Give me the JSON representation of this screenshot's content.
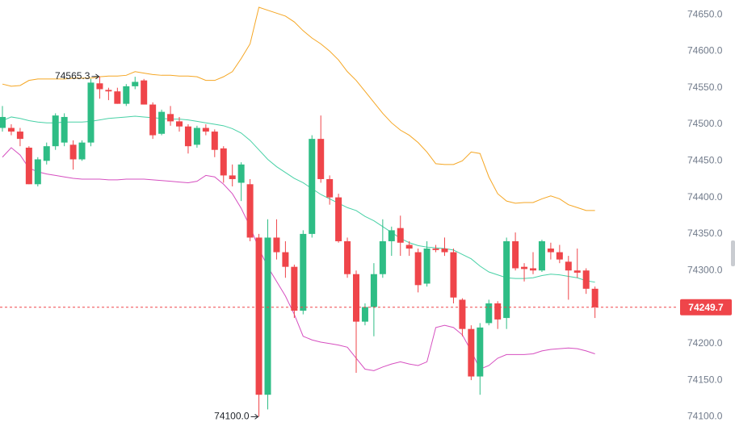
{
  "chart_data": {
    "type": "candlestick",
    "up_color": "#2ebd85",
    "down_color": "#ef454a",
    "ylim": [
      74064,
      74670
    ],
    "yticks": [
      {
        "value": 74100,
        "label": "74100.0"
      },
      {
        "value": 74150,
        "label": "74150.0"
      },
      {
        "value": 74200,
        "label": "74200.0"
      },
      {
        "value": 74250,
        "label": "74250.0"
      },
      {
        "value": 74300,
        "label": "74300.0"
      },
      {
        "value": 74350,
        "label": "74350.0"
      },
      {
        "value": 74400,
        "label": "74400.0"
      },
      {
        "value": 74450,
        "label": "74450.0"
      },
      {
        "value": 74500,
        "label": "74500.0"
      },
      {
        "value": 74550,
        "label": "74550.0"
      },
      {
        "value": 74600,
        "label": "74600.0"
      },
      {
        "value": 74650,
        "label": "74650.0"
      }
    ],
    "open": [
      74495,
      74495,
      74490,
      74468,
      74418,
      74450,
      74470,
      74475,
      74472,
      74452,
      74475,
      74556,
      74547,
      74545,
      74528,
      74552,
      74560,
      74527,
      74487,
      74514,
      74504,
      74497,
      74472,
      74495,
      74490,
      74467,
      74430,
      74420,
      74418,
      74345,
      74130,
      74345,
      74325,
      74305,
      74245,
      74350,
      74480,
      74425,
      74400,
      74340,
      74295,
      74230,
      74250,
      74295,
      74340,
      74358,
      74335,
      74325,
      74282,
      74330,
      74330,
      74325,
      74260,
      74220,
      74155,
      74228,
      74255,
      74235,
      74340,
      74305,
      74303,
      74300,
      74330,
      74325,
      74312,
      74300,
      74300,
      74275
    ],
    "high": [
      74525,
      74500,
      74495,
      74470,
      74455,
      74475,
      74515,
      74515,
      74478,
      74478,
      74562,
      74565.3,
      74550,
      74550,
      74555,
      74565,
      74562,
      74530,
      74520,
      74525,
      74510,
      74500,
      74498,
      74500,
      74493,
      74470,
      74445,
      74448,
      74425,
      74350,
      74370,
      74370,
      74340,
      74308,
      74355,
      74485,
      74512,
      74430,
      74405,
      74345,
      74300,
      74255,
      74310,
      74370,
      74360,
      74375,
      74340,
      74330,
      74340,
      74335,
      74345,
      74330,
      74262,
      74225,
      74228,
      74260,
      74258,
      74345,
      74352,
      74310,
      74325,
      74342,
      74338,
      74335,
      74320,
      74330,
      74303,
      74278
    ],
    "low": [
      74490,
      74485,
      74470,
      74418,
      74415,
      74445,
      74465,
      74470,
      74438,
      74450,
      74470,
      74535,
      74533,
      74528,
      74525,
      74548,
      74527,
      74480,
      74485,
      74498,
      74490,
      74460,
      74468,
      74485,
      74455,
      74420,
      74415,
      74395,
      74340,
      74100,
      74110,
      74315,
      74290,
      74235,
      74240,
      74345,
      74420,
      74390,
      74338,
      74290,
      74160,
      74225,
      74210,
      74290,
      74320,
      74320,
      74320,
      74270,
      74278,
      74325,
      74320,
      74255,
      74210,
      74150,
      74130,
      74225,
      74220,
      74220,
      74300,
      74285,
      74295,
      74298,
      74315,
      74310,
      74260,
      74290,
      74268,
      74235
    ],
    "close": [
      74510,
      74490,
      74480,
      74418,
      74452,
      74470,
      74512,
      74510,
      74452,
      74475,
      74557,
      74548,
      74545,
      74528,
      74552,
      74558,
      74527,
      74485,
      74517,
      74504,
      74497,
      74470,
      74495,
      74490,
      74465,
      74430,
      74425,
      74445,
      74345,
      74130,
      74345,
      74325,
      74305,
      74245,
      74350,
      74480,
      74425,
      74400,
      74340,
      74295,
      74230,
      74250,
      74295,
      74340,
      74355,
      74338,
      74330,
      74280,
      74330,
      74328,
      74325,
      74263,
      74220,
      74155,
      74222,
      74255,
      74233,
      74340,
      74303,
      74302,
      74300,
      74340,
      74325,
      74315,
      74300,
      74297,
      74275,
      74249.7
    ],
    "bands": [
      {
        "color": "#f5a623",
        "values": [
          74555,
          74552,
          74553,
          74560,
          74562,
          74562,
          74562,
          74562,
          74563,
          74563,
          74563,
          74565,
          74566,
          74566,
          74567,
          74572,
          74570,
          74568,
          74567,
          74567,
          74566,
          74566,
          74565,
          74560,
          74560,
          74565,
          74572,
          74590,
          74610,
          74660,
          74656,
          74652,
          74648,
          74640,
          74628,
          74618,
          74610,
          74600,
          74588,
          74572,
          74560,
          74545,
          74530,
          74515,
          74502,
          74492,
          74485,
          74475,
          74462,
          74446,
          74445,
          74445,
          74450,
          74462,
          74460,
          74428,
          74405,
          74395,
          74392,
          74393,
          74393,
          74398,
          74402,
          74398,
          74390,
          74386,
          74382,
          74382
        ]
      },
      {
        "color": "#48d1a6",
        "values": [
          74505,
          74510,
          74508,
          74505,
          74503,
          74502,
          74502,
          74503,
          74503,
          74503,
          74504,
          74506,
          74508,
          74509,
          74510,
          74511,
          74510,
          74509,
          74508,
          74507,
          74507,
          74506,
          74504,
          74502,
          74500,
          74498,
          74494,
          74488,
          74478,
          74465,
          74452,
          74442,
          74434,
          74426,
          74420,
          74412,
          74404,
          74398,
          74392,
          74386,
          74382,
          74374,
          74368,
          74360,
          74352,
          74344,
          74338,
          74334,
          74332,
          74331,
          74330,
          74328,
          74322,
          74316,
          74306,
          74298,
          74294,
          74290,
          74289,
          74289,
          74290,
          74293,
          74295,
          74294,
          74292,
          74290,
          74286,
          74284
        ]
      },
      {
        "color": "#d64fc0",
        "values": [
          74455,
          74468,
          74458,
          74440,
          74435,
          74432,
          74430,
          74428,
          74426,
          74425,
          74425,
          74425,
          74424,
          74424,
          74425,
          74425,
          74425,
          74424,
          74423,
          74422,
          74421,
          74420,
          74422,
          74430,
          74428,
          74418,
          74405,
          74385,
          74360,
          74330,
          74305,
          74285,
          74265,
          74240,
          74210,
          74205,
          74202,
          74200,
          74198,
          74195,
          74180,
          74165,
          74163,
          74168,
          74172,
          74175,
          74172,
          74170,
          74175,
          74222,
          74225,
          74222,
          74212,
          74190,
          74165,
          74170,
          74180,
          74185,
          74185,
          74185,
          74186,
          74190,
          74192,
          74193,
          74194,
          74193,
          74190,
          74186
        ]
      }
    ],
    "high_marker": {
      "index": 11,
      "value": 74565.3,
      "label": "74565.3"
    },
    "low_marker": {
      "index": 29,
      "value": 74100,
      "label": "74100.0"
    },
    "last_price": {
      "value": 74249.7,
      "label": "74249.7"
    }
  }
}
